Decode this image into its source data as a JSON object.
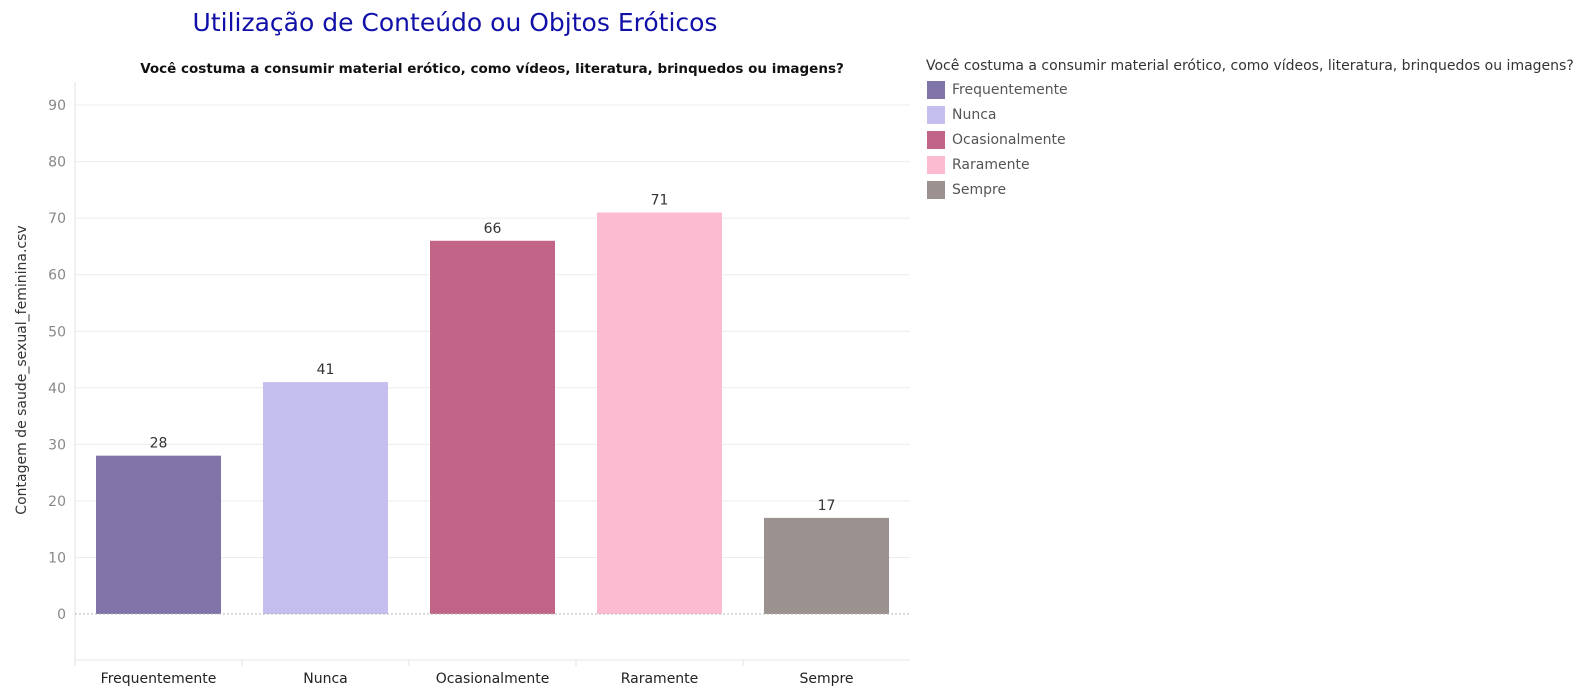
{
  "chart_data": {
    "type": "bar",
    "title": "Utilização de Conteúdo ou Objtos Eróticos",
    "subtitle": "Você costuma a consumir material erótico, como vídeos, literatura, brinquedos ou imagens?",
    "ylabel": "Contagem de saude_sexual_feminina.csv",
    "xlabel": "",
    "categories": [
      "Frequentemente",
      "Nunca",
      "Ocasionalmente",
      "Raramente",
      "Sempre"
    ],
    "values": [
      28,
      41,
      66,
      71,
      17
    ],
    "colors": [
      "#8174a9",
      "#c5bff0",
      "#c26487",
      "#fdbbd1",
      "#9b918e"
    ],
    "ylim": [
      -9,
      92
    ],
    "yticks": [
      "0",
      "10",
      "20",
      "30",
      "40",
      "50",
      "60",
      "70",
      "80",
      "90"
    ],
    "grid": true,
    "legend": {
      "title": "Você costuma a consumir material erótico, como vídeos, literatura, brinquedos ou imagens?",
      "position": "right",
      "items": [
        "Frequentemente",
        "Nunca",
        "Ocasionalmente",
        "Raramente",
        "Sempre"
      ]
    }
  }
}
